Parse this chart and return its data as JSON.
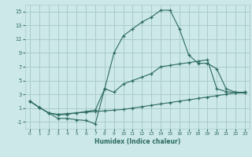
{
  "xlabel": "Humidex (Indice chaleur)",
  "bg_color": "#cce8e8",
  "grid_color": "#aacccc",
  "line_color": "#2d6b62",
  "xlim": [
    -0.5,
    23.5
  ],
  "ylim": [
    -2,
    16
  ],
  "xticks": [
    0,
    1,
    2,
    3,
    4,
    5,
    6,
    7,
    8,
    9,
    10,
    11,
    12,
    13,
    14,
    15,
    16,
    17,
    18,
    19,
    20,
    21,
    22,
    23
  ],
  "yticks": [
    -1,
    1,
    3,
    5,
    7,
    9,
    11,
    13,
    15
  ],
  "line1_x": [
    0,
    1,
    2,
    3,
    4,
    5,
    6,
    7,
    8,
    9,
    10,
    11,
    12,
    13,
    14,
    15,
    16,
    17,
    18,
    19,
    20,
    21,
    22,
    23
  ],
  "line1_y": [
    2,
    1.1,
    0.3,
    0.1,
    0.2,
    0.3,
    0.4,
    0.5,
    0.6,
    0.7,
    0.8,
    1.0,
    1.2,
    1.4,
    1.6,
    1.8,
    2.0,
    2.2,
    2.4,
    2.6,
    2.8,
    3.0,
    3.2,
    3.3
  ],
  "line2_x": [
    0,
    1,
    2,
    3,
    4,
    5,
    6,
    7,
    8,
    9,
    10,
    11,
    12,
    13,
    14,
    15,
    16,
    17,
    18,
    19,
    20,
    21,
    22,
    23
  ],
  "line2_y": [
    2,
    1.1,
    0.3,
    0.0,
    0.1,
    0.3,
    0.5,
    0.7,
    3.8,
    3.3,
    4.5,
    5.0,
    5.5,
    6.0,
    7.0,
    7.2,
    7.4,
    7.6,
    7.8,
    8.0,
    3.8,
    3.4,
    3.2,
    3.2
  ],
  "line3_x": [
    0,
    1,
    2,
    3,
    4,
    5,
    6,
    7,
    8,
    9,
    10,
    11,
    12,
    13,
    14,
    15,
    16,
    17,
    18,
    19,
    20,
    21,
    22,
    23
  ],
  "line3_y": [
    2,
    1.1,
    0.3,
    -0.5,
    -0.5,
    -0.7,
    -0.8,
    -1.3,
    3.8,
    9.0,
    11.5,
    12.5,
    13.5,
    14.2,
    15.2,
    15.2,
    12.5,
    8.7,
    7.5,
    7.5,
    6.7,
    3.8,
    3.3,
    3.3
  ]
}
